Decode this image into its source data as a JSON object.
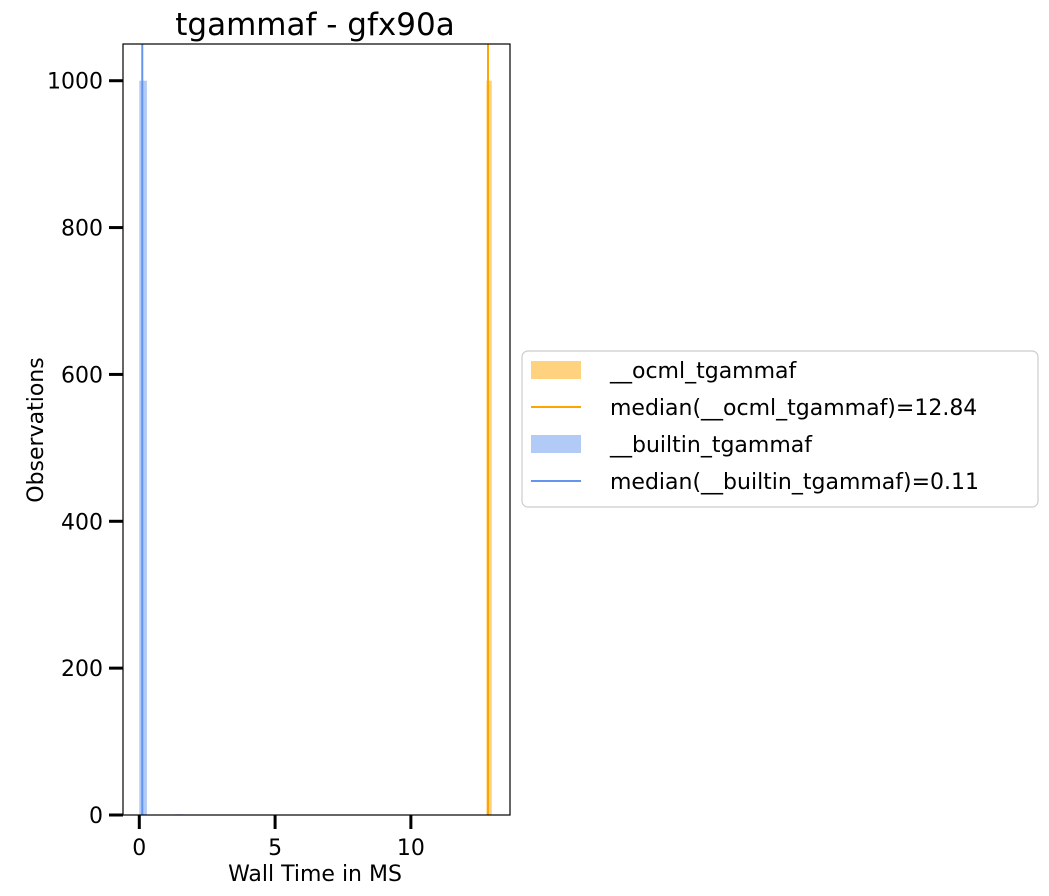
{
  "chart_data": {
    "type": "bar",
    "title": "tgammaf - gfx90a",
    "xlabel": "Wall Time in MS",
    "ylabel": "Observations",
    "xlim": [
      -0.6,
      13.65
    ],
    "ylim": [
      0,
      1050
    ],
    "xticks": [
      0,
      5,
      10
    ],
    "yticks": [
      0,
      200,
      400,
      600,
      800,
      1000
    ],
    "grid": false,
    "legend_position": "right",
    "series": [
      {
        "name": "__ocml_tgammaf",
        "color": "#FFA500",
        "bins": [
          {
            "x0": 12.78,
            "x1": 12.98,
            "count": 1000
          }
        ]
      },
      {
        "name": "__builtin_tgammaf",
        "color": "#6495ED",
        "bins": [
          {
            "x0": 0.0,
            "x1": 0.28,
            "count": 1000
          },
          {
            "x0": 1.32,
            "x1": 1.6,
            "count": 1
          }
        ]
      }
    ],
    "medians": [
      {
        "label": "median(__ocml_tgammaf)=12.84",
        "value": 12.84,
        "color": "#FFA500"
      },
      {
        "label": "median(__builtin_tgammaf)=0.11",
        "value": 0.11,
        "color": "#6495ED"
      }
    ],
    "legend": [
      {
        "label": "__ocml_tgammaf",
        "kind": "patch",
        "color": "#FFA500"
      },
      {
        "label": "median(__ocml_tgammaf)=12.84",
        "kind": "line",
        "color": "#FFA500"
      },
      {
        "label": "__builtin_tgammaf",
        "kind": "patch",
        "color": "#6495ED"
      },
      {
        "label": "median(__builtin_tgammaf)=0.11",
        "kind": "line",
        "color": "#6495ED"
      }
    ]
  }
}
